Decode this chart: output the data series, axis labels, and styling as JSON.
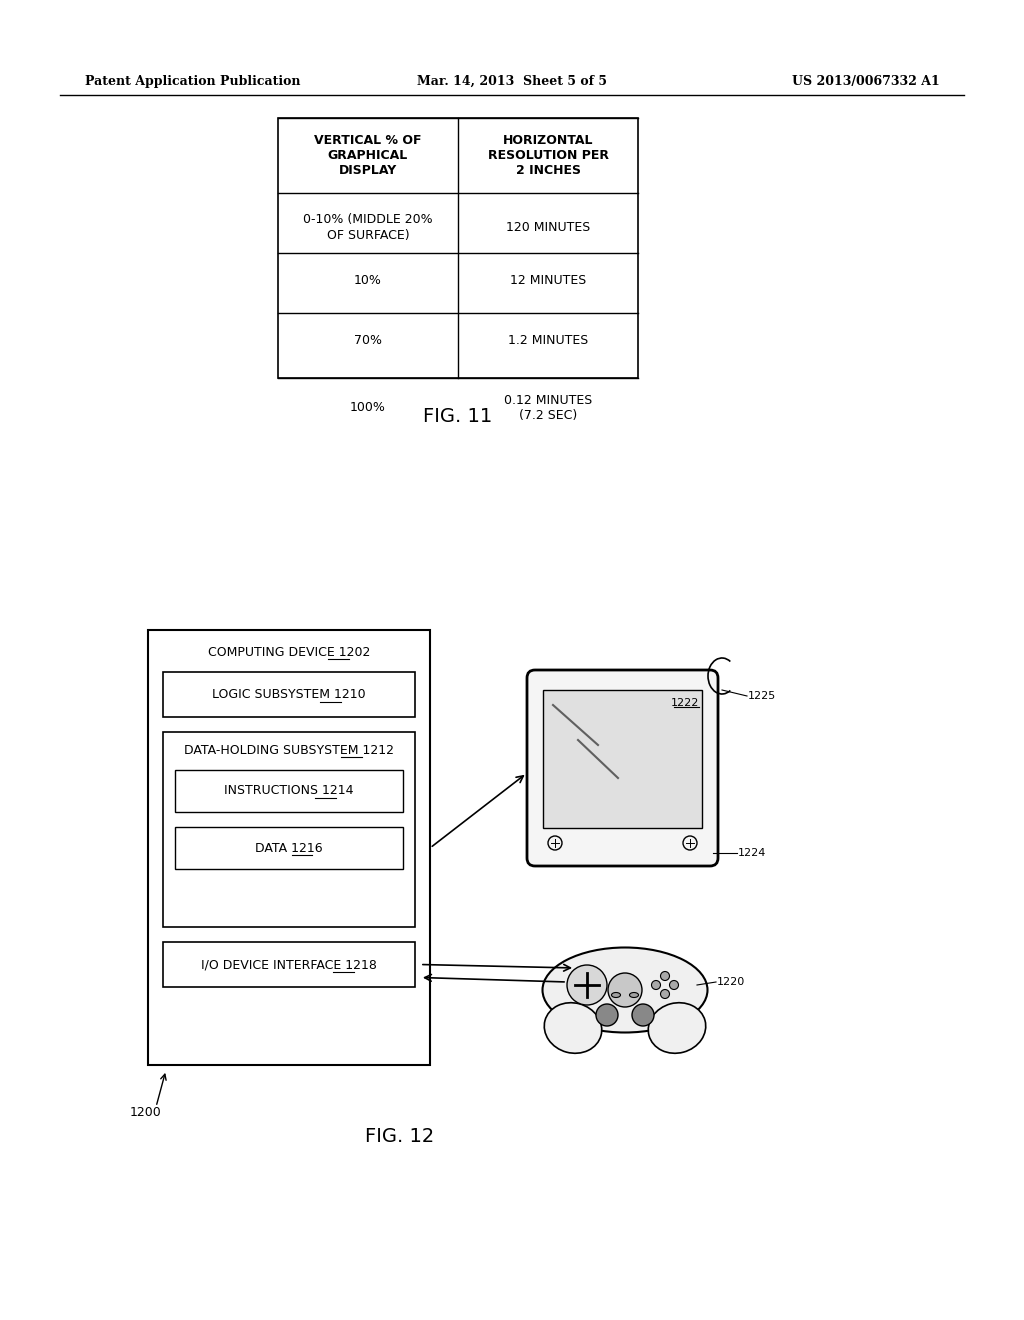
{
  "header_left": "Patent Application Publication",
  "header_mid": "Mar. 14, 2013  Sheet 5 of 5",
  "header_right": "US 2013/0067332 A1",
  "fig11_caption": "FIG. 11",
  "fig12_caption": "FIG. 12",
  "table_headers": [
    "VERTICAL % OF\nGRAPHICAL\nDISPLAY",
    "HORIZONTAL\nRESOLUTION PER\n2 INCHES"
  ],
  "table_rows": [
    [
      "0-10% (MIDDLE 20%\nOF SURFACE)",
      "120 MINUTES"
    ],
    [
      "10%",
      "12 MINUTES"
    ],
    [
      "70%",
      "1.2 MINUTES"
    ],
    [
      "100%",
      "0.12 MINUTES\n(7.2 SEC)"
    ]
  ],
  "bg_color": "#ffffff",
  "text_color": "#000000"
}
